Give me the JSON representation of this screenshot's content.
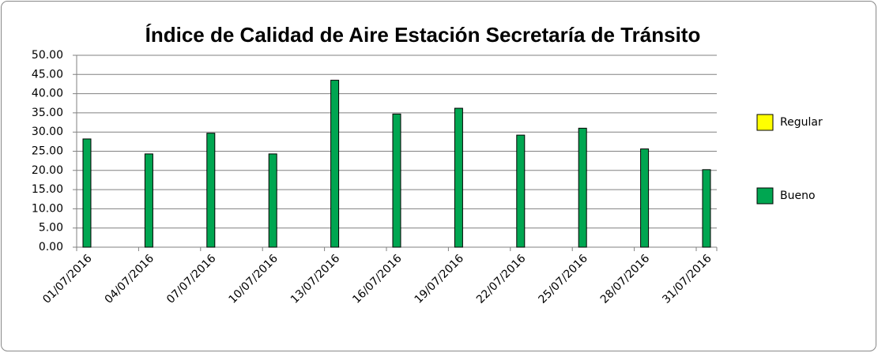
{
  "chart_data": {
    "type": "bar",
    "title": "Índice de Calidad de Aire Estación Secretaría de Tránsito",
    "categories": [
      "01/07/2016",
      "04/07/2016",
      "07/07/2016",
      "10/07/2016",
      "13/07/2016",
      "16/07/2016",
      "19/07/2016",
      "22/07/2016",
      "25/07/2016",
      "28/07/2016",
      "31/07/2016"
    ],
    "series": [
      {
        "name": "Regular",
        "color": "#ffff00",
        "values": [
          null,
          null,
          null,
          null,
          null,
          null,
          null,
          null,
          null,
          null,
          null
        ]
      },
      {
        "name": "Bueno",
        "color": "#00a651",
        "values": [
          28.2,
          24.3,
          29.7,
          24.3,
          43.5,
          34.7,
          36.2,
          29.2,
          31.0,
          25.6,
          20.2
        ]
      }
    ],
    "ylim": [
      0,
      50
    ],
    "yticks": [
      {
        "value": 0,
        "label": "0.00"
      },
      {
        "value": 5,
        "label": "5.00"
      },
      {
        "value": 10,
        "label": "10.00"
      },
      {
        "value": 15,
        "label": "15.00"
      },
      {
        "value": 20,
        "label": "20.00"
      },
      {
        "value": 25,
        "label": "25.00"
      },
      {
        "value": 30,
        "label": "30.00"
      },
      {
        "value": 35,
        "label": "35.00"
      },
      {
        "value": 40,
        "label": "40.00"
      },
      {
        "value": 45,
        "label": "45.00"
      },
      {
        "value": 50,
        "label": "50.00"
      }
    ],
    "grid": true,
    "legend": "right"
  }
}
